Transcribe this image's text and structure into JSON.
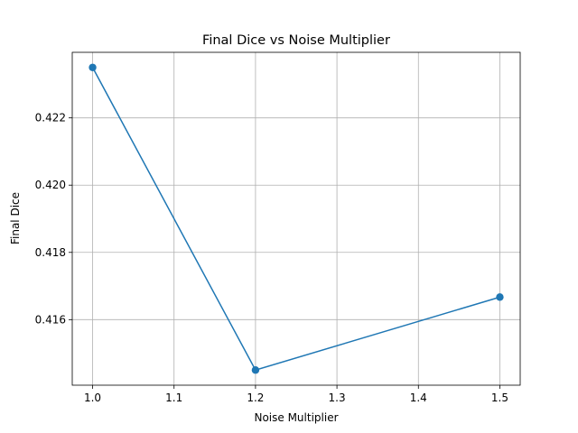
{
  "chart_data": {
    "type": "line",
    "title": "Final Dice vs Noise Multiplier",
    "xlabel": "Noise Multiplier",
    "ylabel": "Final Dice",
    "x": [
      1.0,
      1.2,
      1.5
    ],
    "series": [
      {
        "values": [
          0.4235,
          0.4145,
          0.41667
        ],
        "color": "#1f77b4",
        "marker": "circle"
      }
    ],
    "xlim": [
      0.975,
      1.525
    ],
    "ylim": [
      0.41405,
      0.42395
    ],
    "xticks": [
      1.0,
      1.1,
      1.2,
      1.3,
      1.4,
      1.5
    ],
    "xtick_labels": [
      "1.0",
      "1.1",
      "1.2",
      "1.3",
      "1.4",
      "1.5"
    ],
    "yticks": [
      0.416,
      0.418,
      0.42,
      0.422
    ],
    "ytick_labels": [
      "0.416",
      "0.418",
      "0.420",
      "0.422"
    ],
    "grid": true
  }
}
